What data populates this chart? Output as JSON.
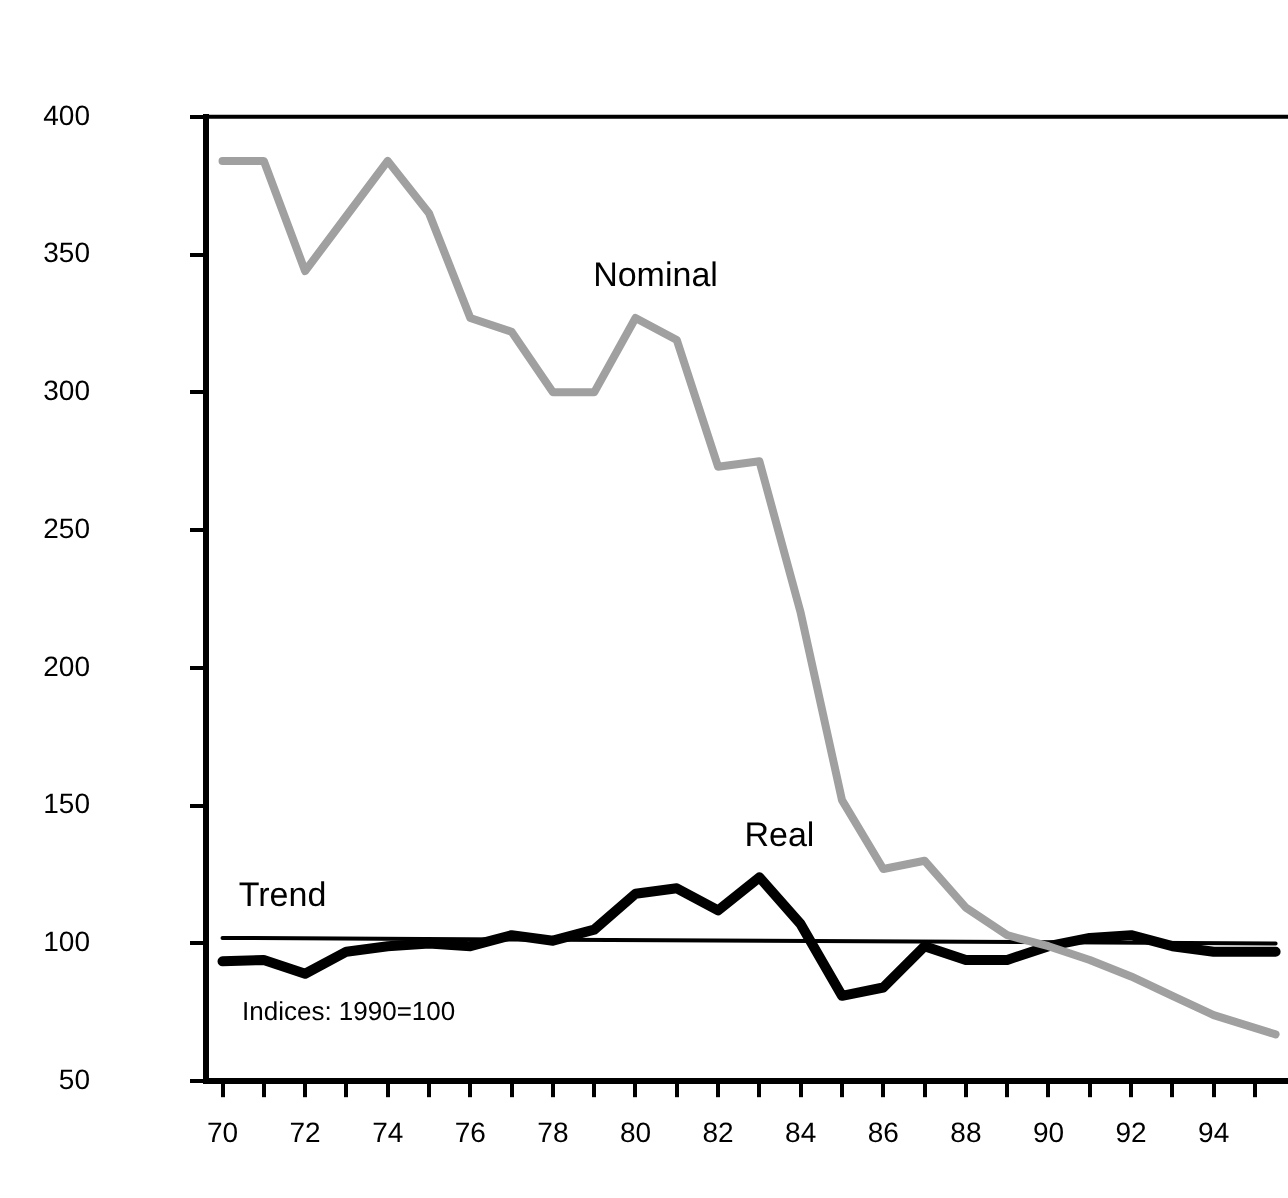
{
  "chart_data": {
    "type": "line",
    "x": [
      70,
      71,
      72,
      73,
      74,
      75,
      76,
      77,
      78,
      79,
      80,
      81,
      82,
      83,
      84,
      85,
      86,
      87,
      88,
      89,
      90,
      91,
      92,
      93,
      94,
      95.5
    ],
    "series": [
      {
        "name": "Nominal",
        "color": "#a0a0a0",
        "values": [
          384,
          384,
          344,
          364,
          384,
          365,
          327,
          322,
          300,
          300,
          327,
          319,
          273,
          275,
          220,
          152,
          127,
          130,
          113,
          103,
          99,
          94,
          88,
          81,
          74,
          67
        ]
      },
      {
        "name": "Real",
        "color": "#000000",
        "values": [
          93.5,
          94,
          89,
          97,
          99,
          100,
          99,
          103,
          101,
          105,
          118,
          120,
          112,
          124,
          107,
          81,
          84,
          99,
          94,
          94,
          99,
          102,
          103,
          99,
          97,
          97
        ]
      },
      {
        "name": "Trend",
        "color": "#000000",
        "x": [
          70,
          95.5
        ],
        "values": [
          102,
          100
        ]
      }
    ],
    "xlim": [
      69.6,
      95.8
    ],
    "xticks": [
      70,
      {
        "value": 71,
        "label": null
      },
      72,
      {
        "value": 73,
        "label": null
      },
      74,
      {
        "value": 75,
        "label": null
      },
      76,
      {
        "value": 77,
        "label": null
      },
      78,
      {
        "value": 79,
        "label": null
      },
      80,
      {
        "value": 81,
        "label": null
      },
      82,
      {
        "value": 83,
        "label": null
      },
      84,
      {
        "value": 85,
        "label": null
      },
      86,
      {
        "value": 87,
        "label": null
      },
      88,
      {
        "value": 89,
        "label": null
      },
      90,
      {
        "value": 91,
        "label": null
      },
      92,
      {
        "value": 93,
        "label": null
      },
      94,
      {
        "value": 95,
        "label": null
      }
    ],
    "ylim": [
      50,
      400
    ],
    "yticks": [
      50,
      100,
      150,
      200,
      250,
      300,
      350,
      400
    ],
    "grid": false,
    "legend": false,
    "marker": "none",
    "line_style": "solid",
    "annotations": [
      "Indices: 1990=100"
    ]
  }
}
